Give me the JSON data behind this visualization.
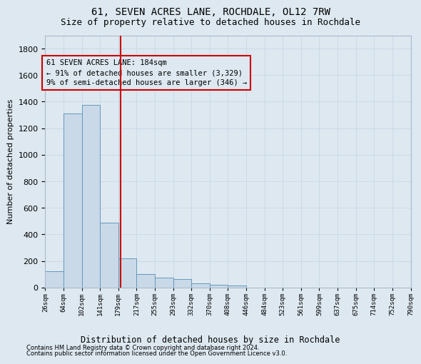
{
  "title": "61, SEVEN ACRES LANE, ROCHDALE, OL12 7RW",
  "subtitle": "Size of property relative to detached houses in Rochdale",
  "xlabel": "Distribution of detached houses by size in Rochdale",
  "ylabel": "Number of detached properties",
  "footnote1": "Contains HM Land Registry data © Crown copyright and database right 2024.",
  "footnote2": "Contains public sector information licensed under the Open Government Licence v3.0.",
  "bin_edges": [
    26,
    64,
    102,
    141,
    179,
    217,
    255,
    293,
    332,
    370,
    408,
    446,
    484,
    523,
    561,
    599,
    637,
    675,
    714,
    752,
    790
  ],
  "bar_heights": [
    120,
    1310,
    1375,
    490,
    220,
    100,
    75,
    65,
    30,
    20,
    15,
    0,
    0,
    0,
    0,
    0,
    0,
    0,
    0,
    0
  ],
  "bar_color": "#c9d9e8",
  "bar_edge_color": "#6699bb",
  "tick_labels": [
    "26sqm",
    "64sqm",
    "102sqm",
    "141sqm",
    "179sqm",
    "217sqm",
    "255sqm",
    "293sqm",
    "332sqm",
    "370sqm",
    "408sqm",
    "446sqm",
    "484sqm",
    "523sqm",
    "561sqm",
    "599sqm",
    "637sqm",
    "675sqm",
    "714sqm",
    "752sqm",
    "790sqm"
  ],
  "vline_x": 4,
  "vline_color": "#cc0000",
  "annotation_text": "61 SEVEN ACRES LANE: 184sqm\n← 91% of detached houses are smaller (3,329)\n9% of semi-detached houses are larger (346) →",
  "annotation_box_color": "#cc0000",
  "ylim": [
    0,
    1900
  ],
  "yticks": [
    0,
    200,
    400,
    600,
    800,
    1000,
    1200,
    1400,
    1600,
    1800
  ],
  "grid_color": "#c8d8e8",
  "bg_color": "#dde8f0",
  "title_fontsize": 10,
  "subtitle_fontsize": 9
}
